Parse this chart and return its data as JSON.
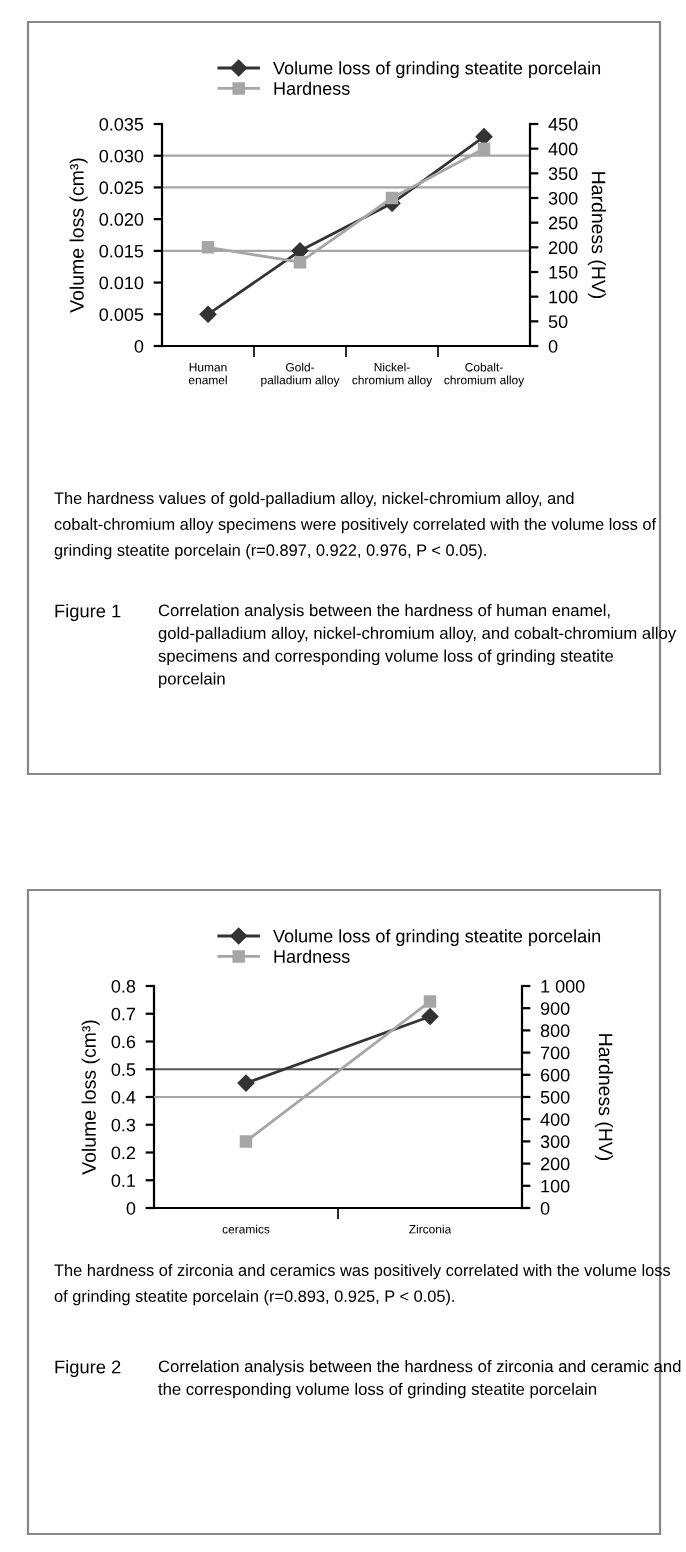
{
  "chart_data": [
    {
      "type": "line",
      "categories": [
        "Human\nenamel",
        "Gold-\npalladium alloy",
        "Nickel-\nchromium alloy",
        "Cobalt-\nchromium alloy"
      ],
      "series": [
        {
          "name": "Volume loss of grinding steatite porcelain",
          "color": "#333333",
          "marker": "diamond",
          "axis": "y",
          "values": [
            0.005,
            0.015,
            0.0225,
            0.033
          ]
        },
        {
          "name": "Hardness",
          "color": "#a6a6a6",
          "marker": "square",
          "axis": "y2",
          "values": [
            200,
            170,
            300,
            400
          ]
        }
      ],
      "ylabel": "Volume loss (cm³)",
      "y2label": "Hardness (HV)",
      "ylim": [
        0,
        0.035
      ],
      "yticks": [
        0,
        0.005,
        {
          "value": 0.01,
          "label": "0.010"
        },
        0.015,
        {
          "value": 0.02,
          "label": "0.020"
        },
        0.025,
        {
          "value": 0.03,
          "label": "0.030"
        },
        0.035
      ],
      "y2lim": [
        0,
        450
      ],
      "y2ticks": [
        0,
        50,
        100,
        150,
        200,
        250,
        300,
        350,
        400,
        450
      ],
      "ref_lines": [
        {
          "axis": "y",
          "value": 0.015,
          "color": "#a6a6a6"
        },
        {
          "axis": "y",
          "value": 0.025,
          "color": "#a6a6a6"
        },
        {
          "axis": "y",
          "value": 0.03,
          "color": "#a6a6a6"
        }
      ],
      "legend": "top",
      "grid": false,
      "annotations": [
        "The hardness values of gold-palladium alloy, nickel-chromium alloy, and cobalt-chromium alloy specimens were positively correlated with the volume loss of grinding steatite porcelain (r=0.897, 0.922, 0.976, P < 0.05).",
        "Figure 1",
        "Correlation analysis between the hardness of human enamel, gold-palladium alloy, nickel-chromium alloy, and cobalt-chromium alloy specimens and corresponding volume loss of grinding steatite porcelain"
      ]
    },
    {
      "type": "line",
      "categories": [
        "ceramics",
        "Zirconia"
      ],
      "series": [
        {
          "name": "Volume loss of grinding steatite porcelain",
          "color": "#333333",
          "marker": "diamond",
          "axis": "y",
          "values": [
            0.45,
            0.69
          ]
        },
        {
          "name": "Hardness",
          "color": "#a6a6a6",
          "marker": "square",
          "axis": "y2",
          "values": [
            300,
            930
          ]
        }
      ],
      "ylabel": "Volume loss (cm³)",
      "y2label": "Hardness (HV)",
      "ylim": [
        0,
        0.8
      ],
      "yticks": [
        0,
        0.1,
        0.2,
        0.3,
        0.4,
        0.5,
        0.6,
        0.7,
        0.8
      ],
      "y2lim": [
        0,
        1000
      ],
      "y2ticks": [
        0,
        100,
        200,
        300,
        400,
        500,
        600,
        700,
        800,
        900,
        {
          "value": 1000,
          "label": "1 000"
        }
      ],
      "ref_lines": [
        {
          "axis": "y",
          "value": 0.5,
          "color": "#555555"
        },
        {
          "axis": "y2",
          "value": 500,
          "color": "#a6a6a6"
        }
      ],
      "legend": "top",
      "grid": false,
      "annotations": [
        "The hardness of zirconia and ceramics was positively correlated with the volume loss of grinding steatite porcelain (r=0.893, 0.925, P < 0.05).",
        "Figure 2",
        "Correlation analysis between the hardness of zirconia and ceramic and the corresponding volume loss of grinding steatite porcelain"
      ]
    }
  ]
}
